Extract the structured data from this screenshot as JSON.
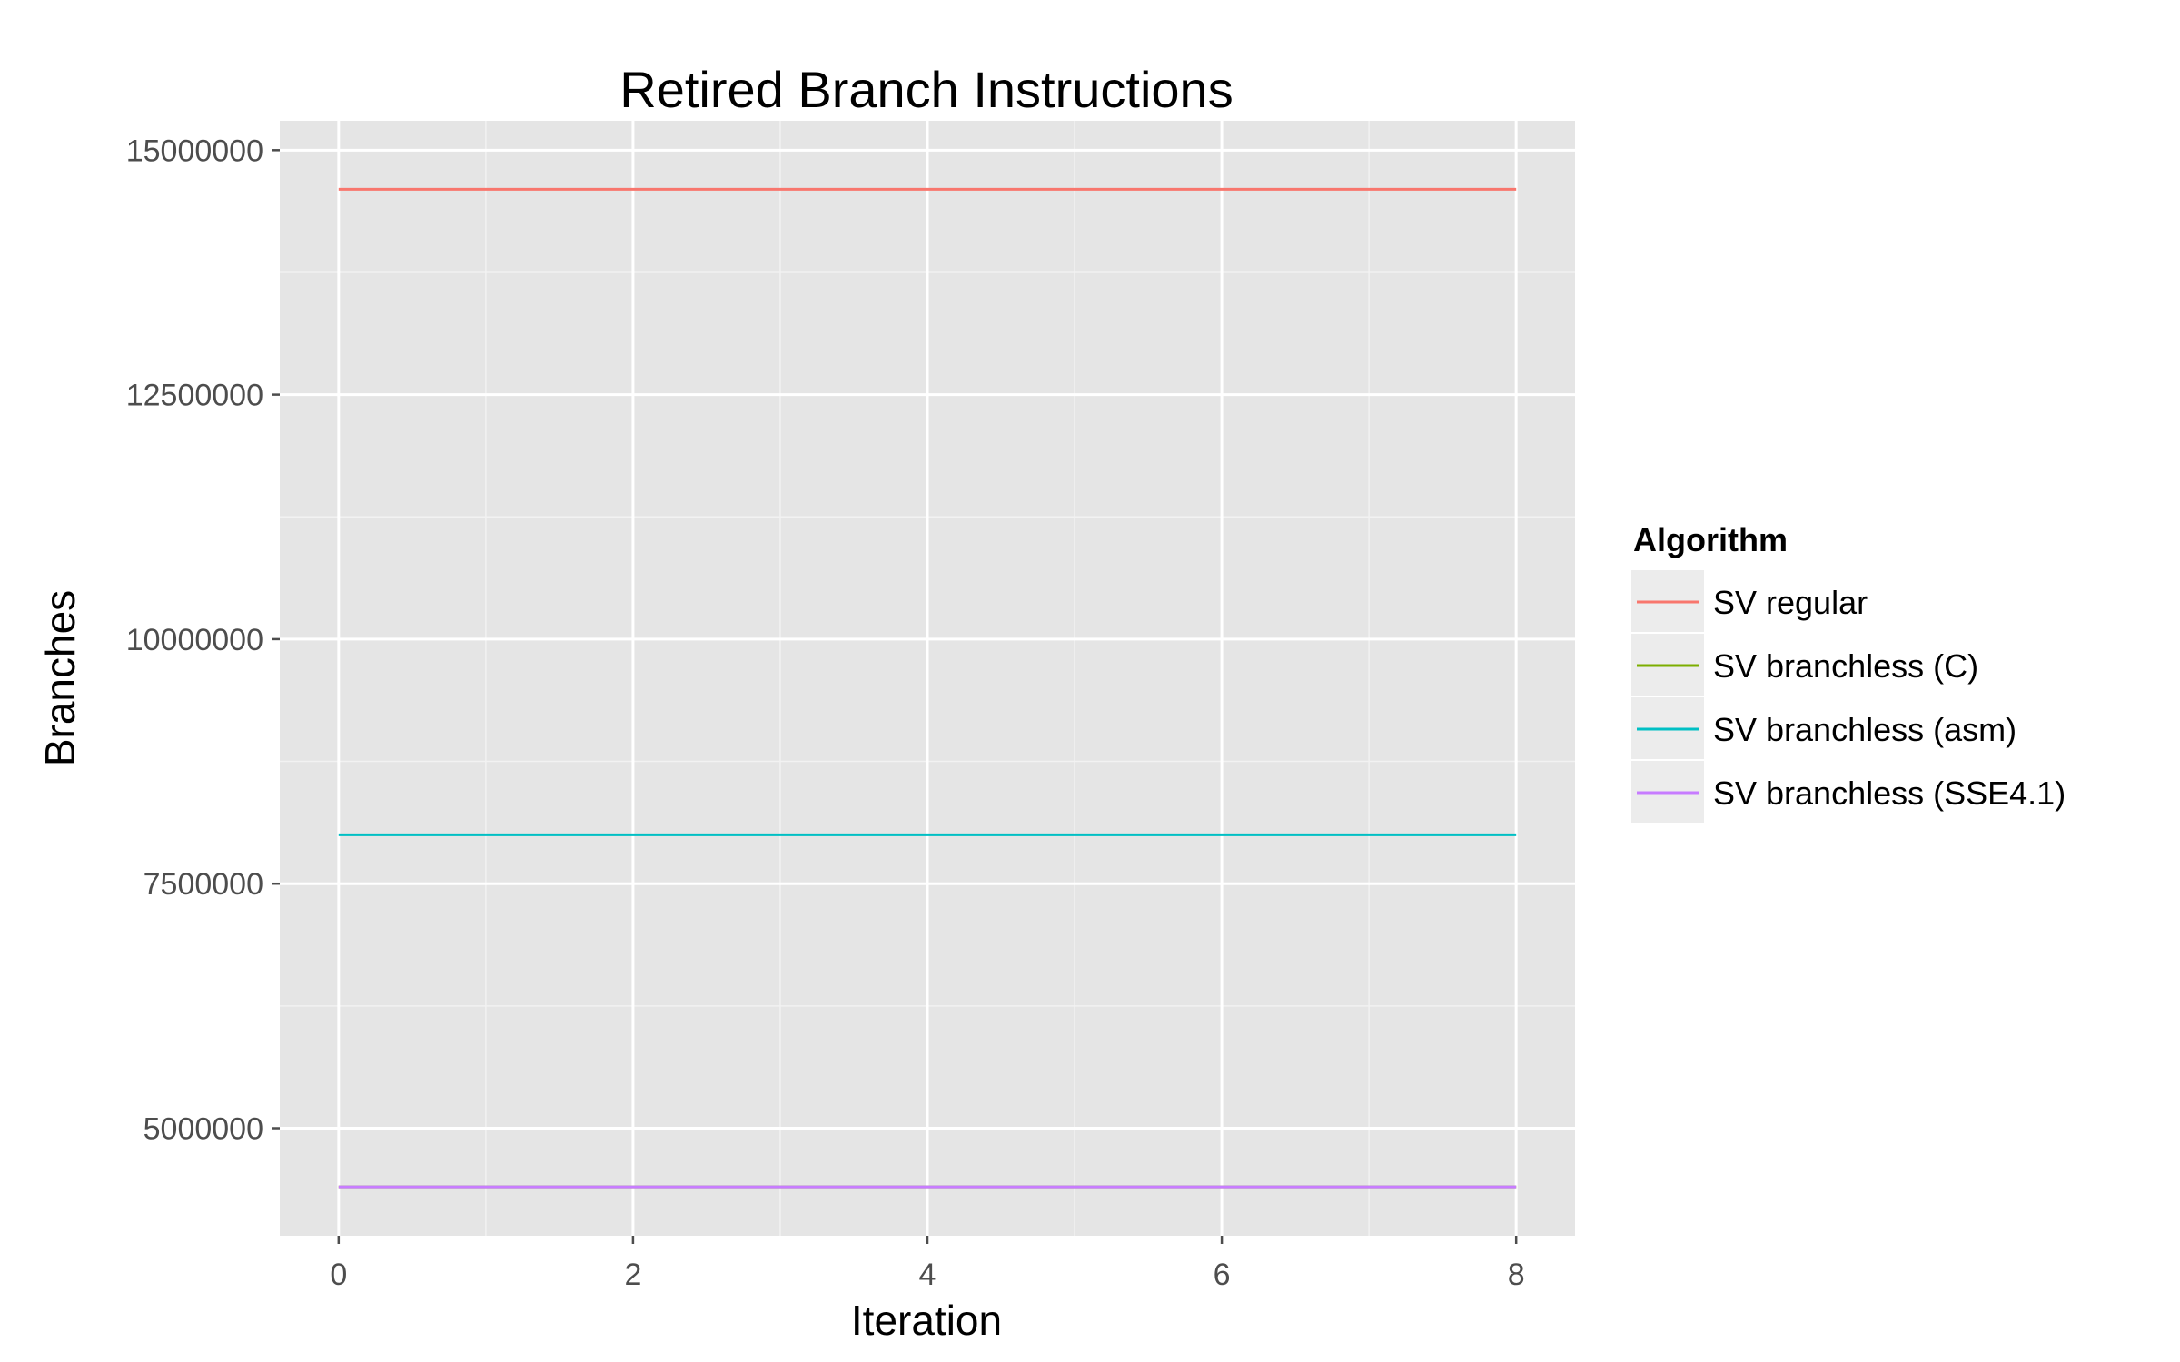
{
  "chart_data": {
    "type": "line",
    "title": "Retired Branch Instructions",
    "xlabel": "Iteration",
    "ylabel": "Branches",
    "x": [
      0,
      1,
      2,
      3,
      4,
      5,
      6,
      7,
      8
    ],
    "xticks": [
      0,
      2,
      4,
      6,
      8
    ],
    "yticks": [
      5000000,
      7500000,
      10000000,
      12500000,
      15000000
    ],
    "ytick_labels": [
      "5000000",
      "7500000",
      "10000000",
      "12500000",
      "15000000"
    ],
    "xtick_labels": [
      "0",
      "2",
      "4",
      "6",
      "8"
    ],
    "xlim": [
      -0.4,
      8.4
    ],
    "ylim": [
      3900000,
      15300000
    ],
    "grid": true,
    "legend_title": "Algorithm",
    "legend_position": "right",
    "series": [
      {
        "name": "SV regular",
        "color": "#F8766D",
        "values": [
          14600000,
          14600000,
          14600000,
          14600000,
          14600000,
          14600000,
          14600000,
          14600000,
          14600000
        ]
      },
      {
        "name": "SV branchless (C)",
        "color": "#7CAE00",
        "values": [
          4400000,
          4400000,
          4400000,
          4400000,
          4400000,
          4400000,
          4400000,
          4400000,
          4400000
        ]
      },
      {
        "name": "SV branchless (asm)",
        "color": "#00BFC4",
        "values": [
          8000000,
          8000000,
          8000000,
          8000000,
          8000000,
          8000000,
          8000000,
          8000000,
          8000000
        ]
      },
      {
        "name": "SV branchless (SSE4.1)",
        "color": "#C77CFF",
        "values": [
          4400000,
          4400000,
          4400000,
          4400000,
          4400000,
          4400000,
          4400000,
          4400000,
          4400000
        ]
      }
    ]
  }
}
